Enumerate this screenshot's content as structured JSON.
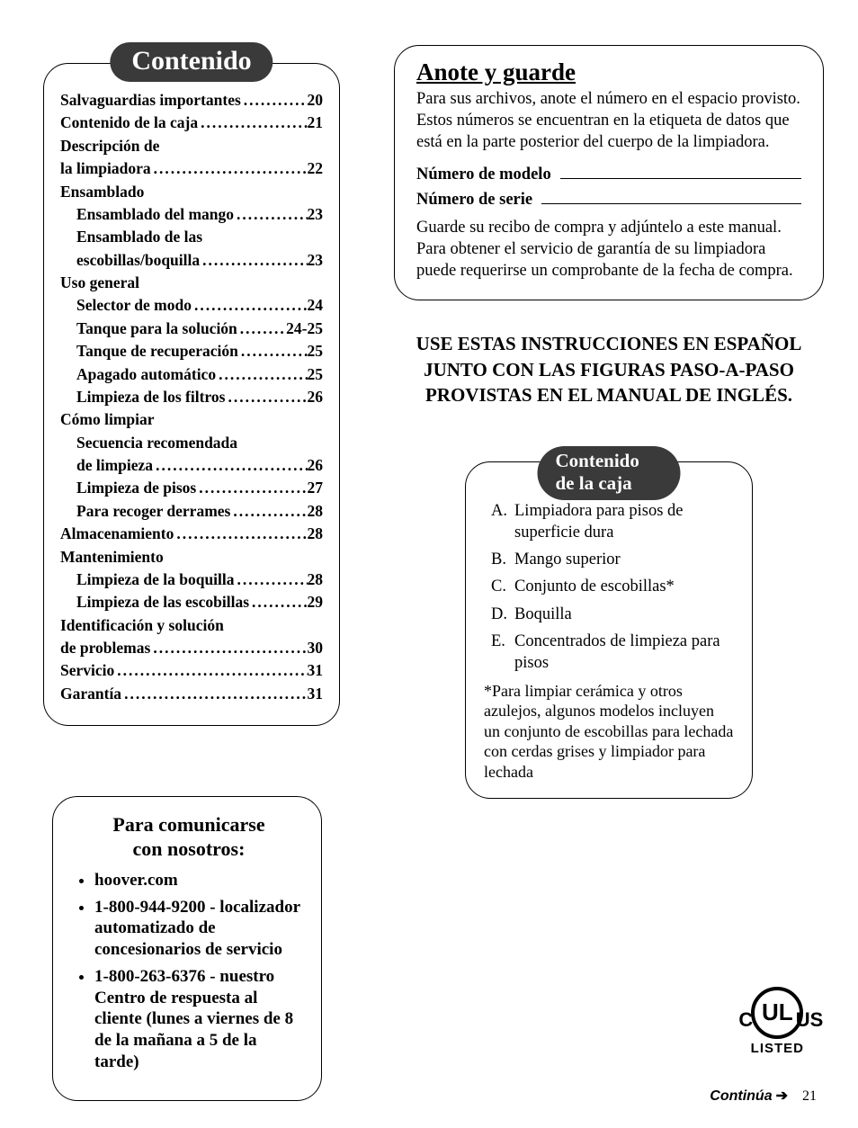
{
  "toc": {
    "title": "Contenido",
    "rows": [
      {
        "type": "leaf",
        "indent": 0,
        "label": "Salvaguardias importantes",
        "page": "20"
      },
      {
        "type": "leaf",
        "indent": 0,
        "label": "Contenido de la caja",
        "page": "21"
      },
      {
        "type": "label",
        "indent": 0,
        "label": "Descripción de"
      },
      {
        "type": "leaf",
        "indent": 0,
        "label": "la limpiadora",
        "page": "22"
      },
      {
        "type": "label",
        "indent": 0,
        "label": "Ensamblado"
      },
      {
        "type": "leaf",
        "indent": 1,
        "label": "Ensamblado del mango",
        "page": "23"
      },
      {
        "type": "label",
        "indent": 1,
        "label": "Ensamblado de las"
      },
      {
        "type": "leaf",
        "indent": 1,
        "label": "escobillas/boquilla",
        "page": "23"
      },
      {
        "type": "label",
        "indent": 0,
        "label": "Uso general"
      },
      {
        "type": "leaf",
        "indent": 1,
        "label": "Selector de modo",
        "page": "24"
      },
      {
        "type": "leaf",
        "indent": 1,
        "label": "Tanque para la solución",
        "page": "24-25"
      },
      {
        "type": "leaf",
        "indent": 1,
        "label": "Tanque de recuperación",
        "page": "25"
      },
      {
        "type": "leaf",
        "indent": 1,
        "label": "Apagado automático",
        "page": "25"
      },
      {
        "type": "leaf",
        "indent": 1,
        "label": "Limpieza de los filtros",
        "page": "26"
      },
      {
        "type": "label",
        "indent": 0,
        "label": "Cómo limpiar"
      },
      {
        "type": "label",
        "indent": 1,
        "label": "Secuencia recomendada"
      },
      {
        "type": "leaf",
        "indent": 1,
        "label": "de limpieza",
        "page": "26"
      },
      {
        "type": "leaf",
        "indent": 1,
        "label": "Limpieza de pisos",
        "page": "27"
      },
      {
        "type": "leaf",
        "indent": 1,
        "label": "Para recoger derrames",
        "page": "28"
      },
      {
        "type": "leaf",
        "indent": 0,
        "label": "Almacenamiento",
        "page": "28"
      },
      {
        "type": "label",
        "indent": 0,
        "label": "Mantenimiento"
      },
      {
        "type": "leaf",
        "indent": 1,
        "label": "Limpieza de la boquilla",
        "page": "28"
      },
      {
        "type": "leaf",
        "indent": 1,
        "label": "Limpieza de las escobillas",
        "page": "29"
      },
      {
        "type": "label",
        "indent": 0,
        "label": "Identificación y solución"
      },
      {
        "type": "leaf",
        "indent": 0,
        "label": "de problemas",
        "page": "30"
      },
      {
        "type": "leaf",
        "indent": 0,
        "label": "Servicio",
        "page": "31"
      },
      {
        "type": "leaf",
        "indent": 0,
        "label": "Garantía",
        "page": "31"
      }
    ]
  },
  "contact": {
    "title_l1": "Para comunicarse",
    "title_l2": "con nosotros:",
    "items": [
      "hoover.com",
      "1-800-944-9200 - localizador automatizado de concesionarios de servicio",
      "1-800-263-6376 - nuestro Centro de respuesta al cliente (lunes a viernes de 8 de la mañana a 5 de la tarde)"
    ]
  },
  "anote": {
    "title": "Anote y guarde",
    "p1": "Para sus archivos, anote el número en el espacio provisto. Estos números se encuentran en la etiqueta de datos que está en la parte posterior del cuerpo de la limpiadora.",
    "f1_label": "Número de modelo",
    "f2_label": "Número de serie",
    "p2": "Guarde su recibo de compra y adjúntelo a este manual. Para obtener el servicio de garantía de su limpiadora puede requerirse un comprobante de la fecha de compra."
  },
  "bignote": "USE ESTAS INSTRUCCIONES EN ESPAÑOL JUNTO CON LAS FIGURAS PASO-A-PASO PROVISTAS EN EL MANUAL DE INGLÉS.",
  "caja": {
    "title": "Contenido de la caja",
    "items": [
      {
        "letter": "A.",
        "text": "Limpiadora para pisos de superficie dura"
      },
      {
        "letter": "B.",
        "text": "Mango superior"
      },
      {
        "letter": "C.",
        "text": "Conjunto de escobillas*"
      },
      {
        "letter": "D.",
        "text": "Boquilla"
      },
      {
        "letter": "E.",
        "text": "Concentrados de limpieza para pisos"
      }
    ],
    "note": "*Para limpiar cerámica y otros azulejos, algunos modelos incluyen un conjunto de escobillas para lechada con cerdas grises y limpiador para lechada"
  },
  "ul": {
    "main": "UL",
    "left": "C",
    "right": "US",
    "listed": "LISTED"
  },
  "footer": {
    "cont": "Continúa",
    "arrow": "➔",
    "page": "21"
  }
}
